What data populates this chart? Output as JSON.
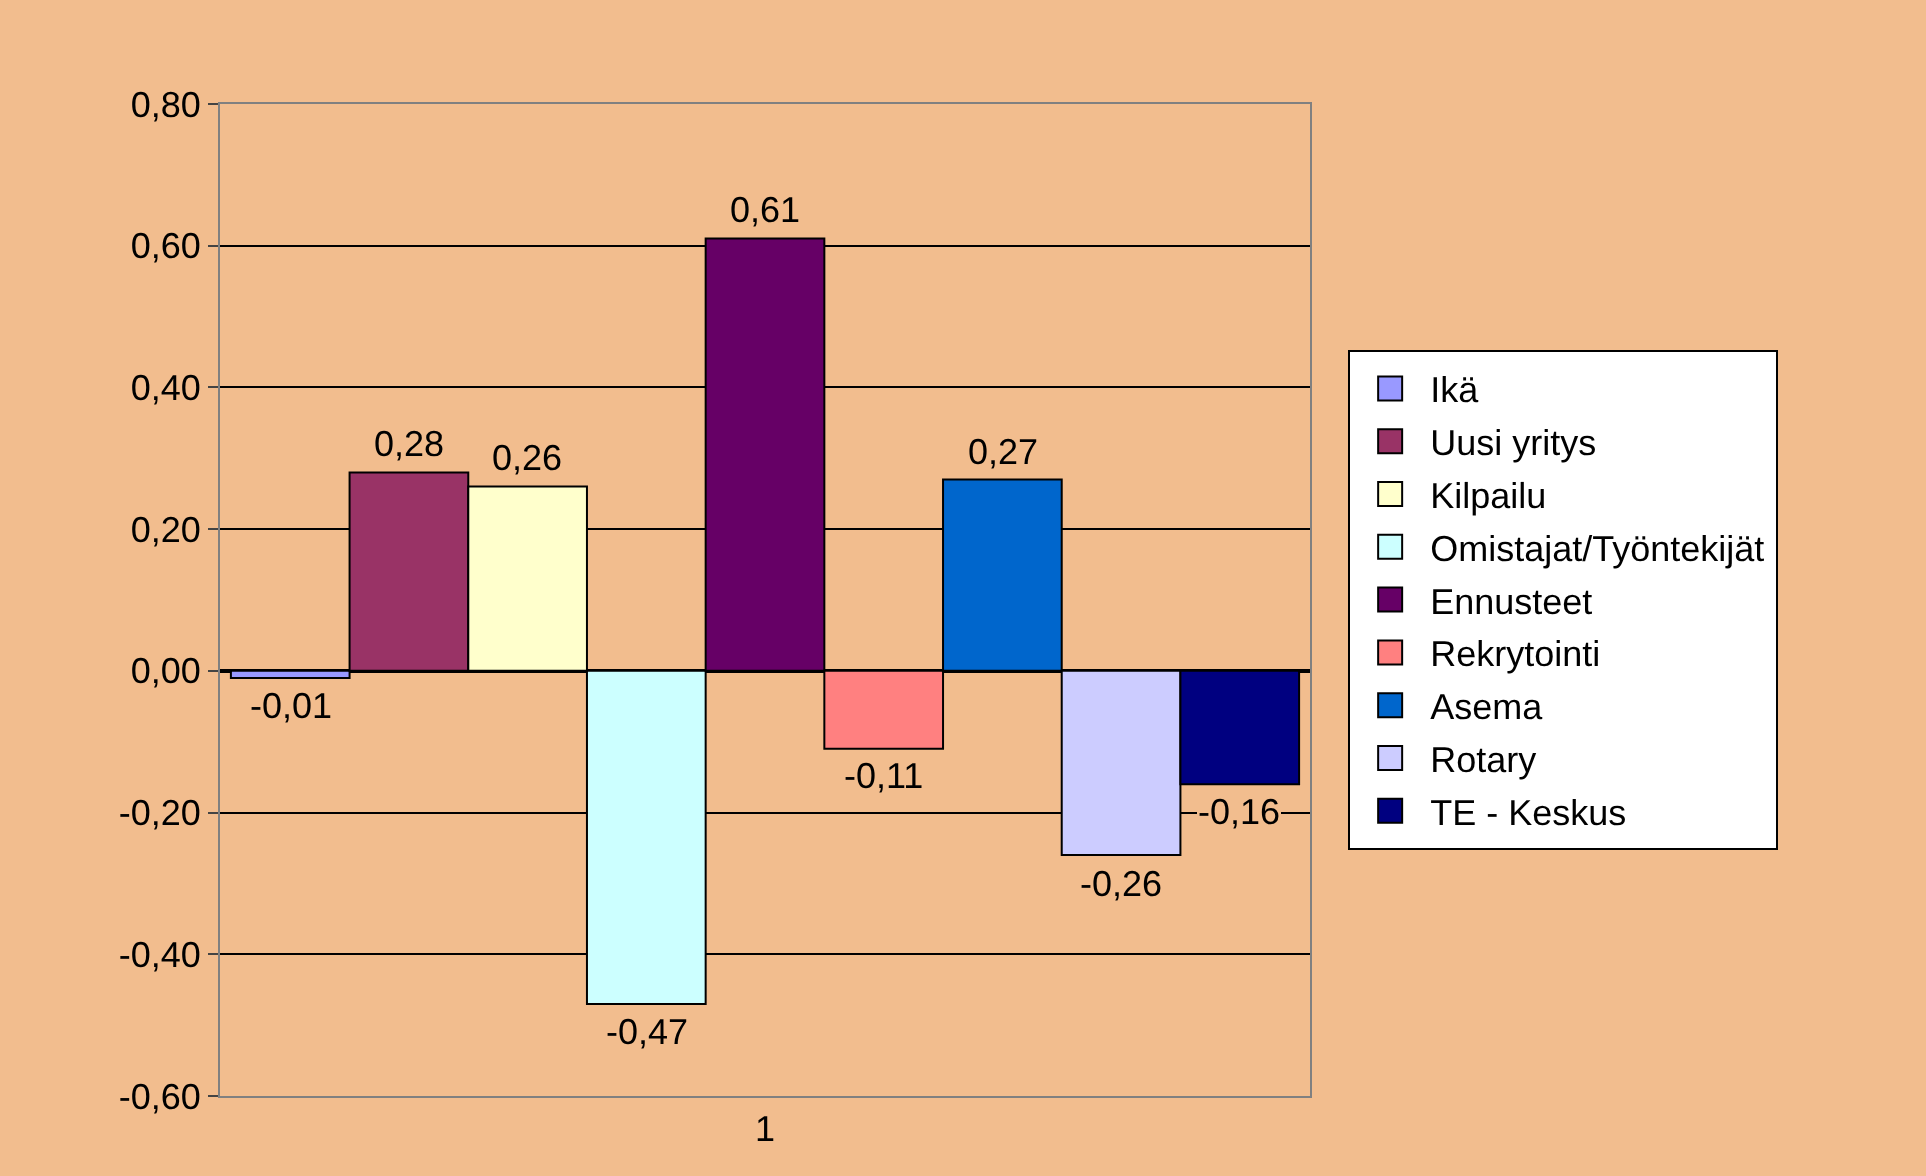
{
  "chart_data": {
    "type": "bar",
    "categories": [
      "1"
    ],
    "series": [
      {
        "name": "Ikä",
        "color": "#9999ff",
        "values": [
          -0.01
        ],
        "value_labels": [
          "-0,01"
        ]
      },
      {
        "name": "Uusi yritys",
        "color": "#993366",
        "values": [
          0.28
        ],
        "value_labels": [
          "0,28"
        ]
      },
      {
        "name": "Kilpailu",
        "color": "#ffffcc",
        "values": [
          0.26
        ],
        "value_labels": [
          "0,26"
        ]
      },
      {
        "name": "Omistajat/Työntekijät",
        "color": "#ccffff",
        "values": [
          -0.47
        ],
        "value_labels": [
          "-0,47"
        ]
      },
      {
        "name": "Ennusteet",
        "color": "#660066",
        "values": [
          0.61
        ],
        "value_labels": [
          "0,61"
        ]
      },
      {
        "name": "Rekrytointi",
        "color": "#ff8080",
        "values": [
          -0.11
        ],
        "value_labels": [
          "-0,11"
        ]
      },
      {
        "name": "Asema",
        "color": "#0066cc",
        "values": [
          0.27
        ],
        "value_labels": [
          "0,27"
        ]
      },
      {
        "name": "Rotary",
        "color": "#ccccff",
        "values": [
          -0.26
        ],
        "value_labels": [
          "-0,26"
        ]
      },
      {
        "name": "TE - Keskus",
        "color": "#000080",
        "values": [
          -0.16
        ],
        "value_labels": [
          "-0,16"
        ]
      }
    ],
    "ylim": [
      -0.6,
      0.8
    ],
    "yticks": [
      {
        "value": -0.6,
        "label": "-0,60"
      },
      {
        "value": -0.4,
        "label": "-0,40"
      },
      {
        "value": -0.2,
        "label": "-0,20"
      },
      {
        "value": 0,
        "label": "0,00"
      },
      {
        "value": 0.2,
        "label": "0,20"
      },
      {
        "value": 0.4,
        "label": "0,40"
      },
      {
        "value": 0.6,
        "label": "0,60"
      },
      {
        "value": 0.8,
        "label": "0,80"
      }
    ],
    "grid": "y",
    "legend": "right"
  }
}
